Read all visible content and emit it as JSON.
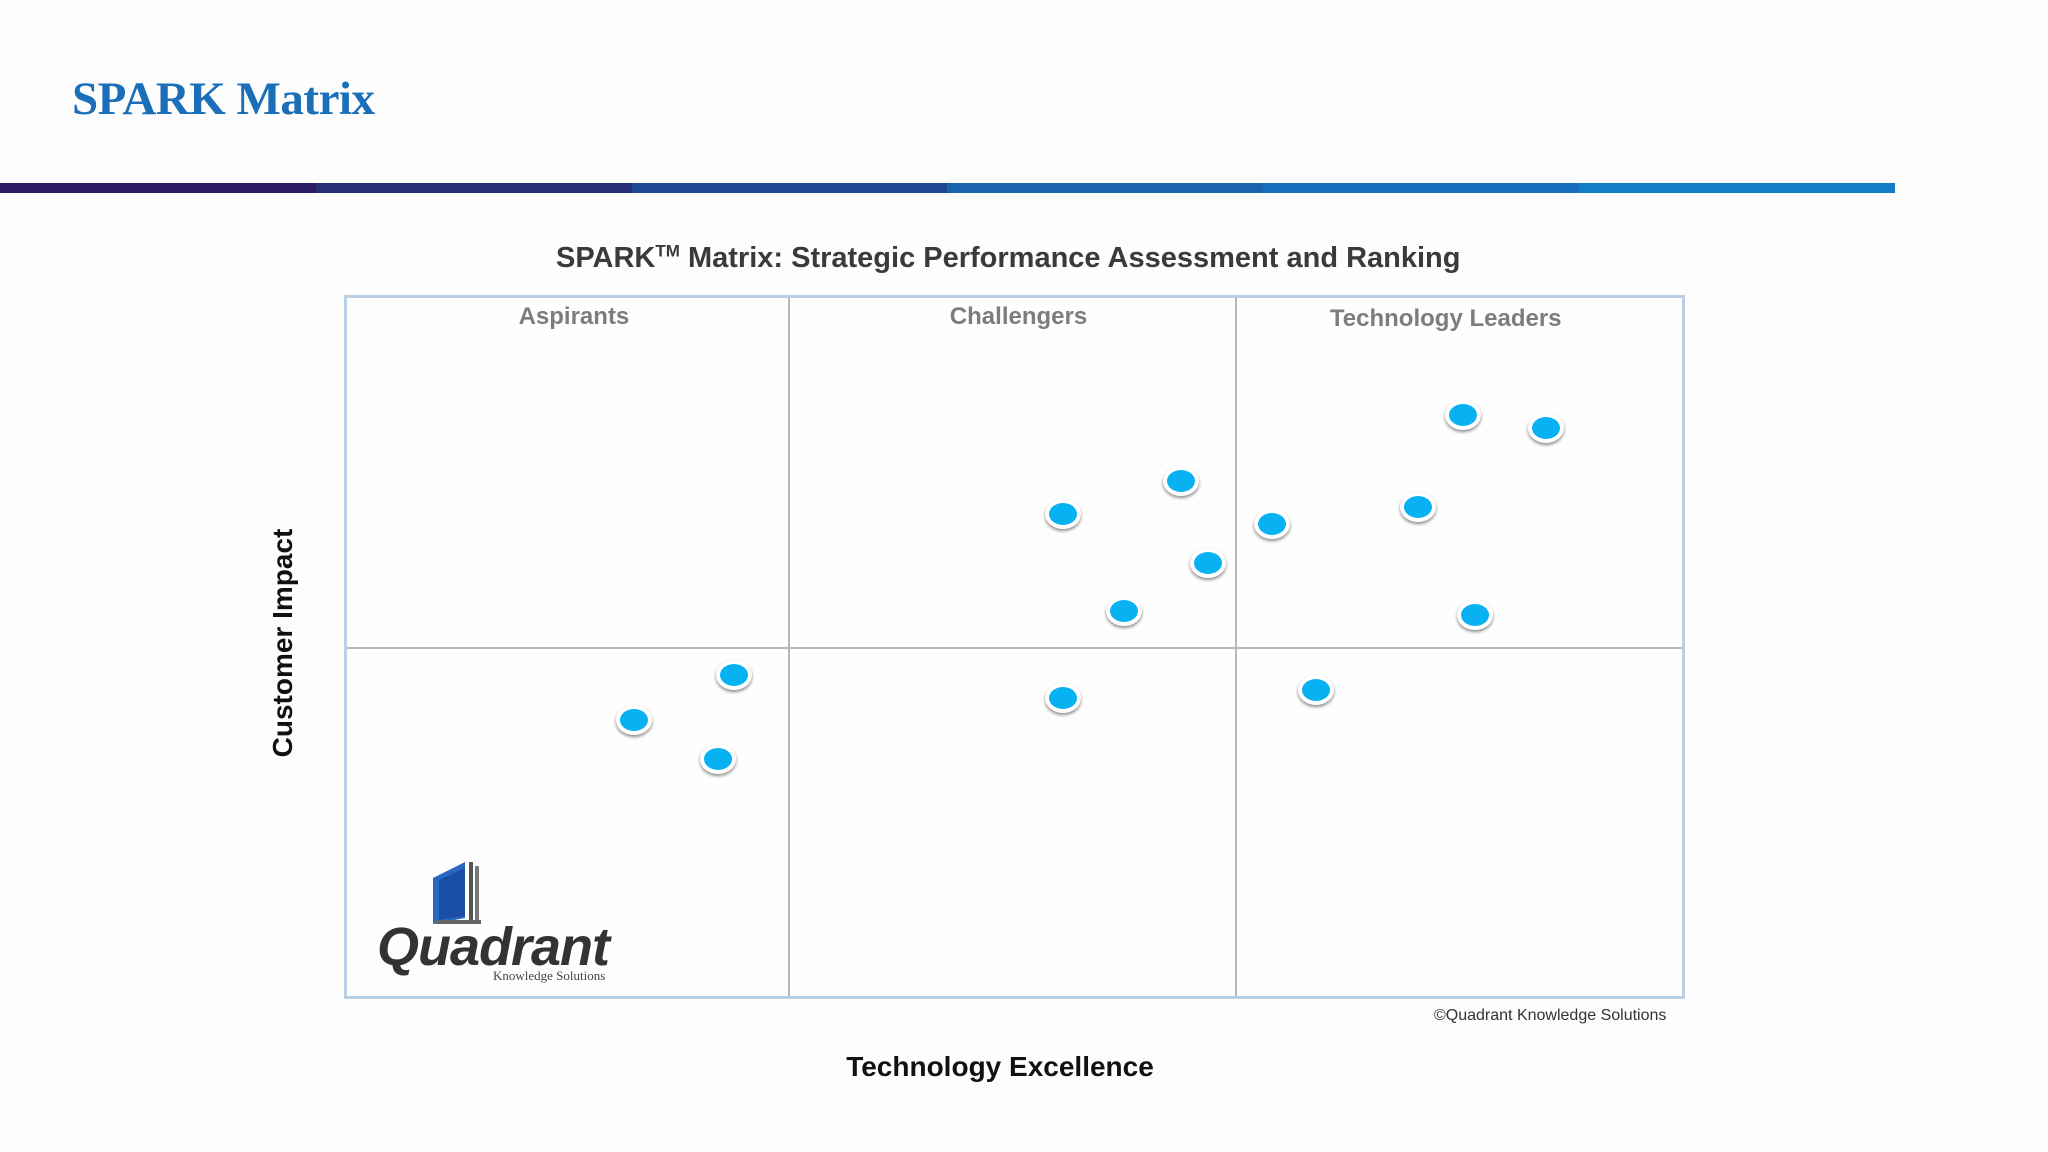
{
  "slide": {
    "title": "SPARK Matrix"
  },
  "accent_colors": [
    "#2b1a64",
    "#242f78",
    "#1f4a93",
    "#1a62ad",
    "#166fbc",
    "#127ec8"
  ],
  "copyright": "©Quadrant Knowledge Solutions",
  "logo": {
    "word": "Quadrant",
    "subtitle": "Knowledge Solutions"
  },
  "chart_data": {
    "type": "scatter",
    "title": "SPARK",
    "title_sup": "TM",
    "title_rest": " Matrix: Strategic Performance Assessment and Ranking",
    "xlabel": "Technology Excellence",
    "ylabel": "Customer Impact",
    "xlim": [
      0,
      1
    ],
    "ylim": [
      0,
      1
    ],
    "grid": false,
    "quadrant_labels": [
      "Aspirants",
      "Challengers",
      "Technology Leaders"
    ],
    "dot_color": "#08b2f2",
    "points": [
      {
        "x": 0.836,
        "y": 0.833
      },
      {
        "x": 0.898,
        "y": 0.814
      },
      {
        "x": 0.625,
        "y": 0.738
      },
      {
        "x": 0.536,
        "y": 0.691
      },
      {
        "x": 0.693,
        "y": 0.676
      },
      {
        "x": 0.802,
        "y": 0.701
      },
      {
        "x": 0.645,
        "y": 0.62
      },
      {
        "x": 0.582,
        "y": 0.551
      },
      {
        "x": 0.845,
        "y": 0.546
      },
      {
        "x": 0.29,
        "y": 0.46
      },
      {
        "x": 0.215,
        "y": 0.395
      },
      {
        "x": 0.278,
        "y": 0.339
      },
      {
        "x": 0.536,
        "y": 0.427
      },
      {
        "x": 0.726,
        "y": 0.439
      }
    ]
  }
}
